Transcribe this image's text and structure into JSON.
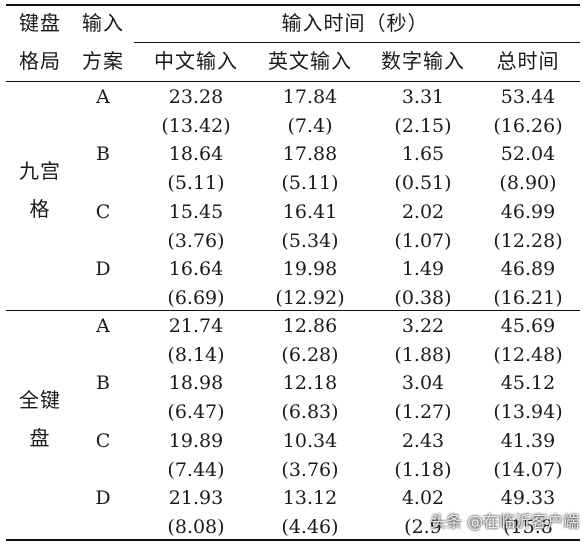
{
  "header": {
    "col1_line1": "键盘",
    "col1_line2": "格局",
    "col2_line1": "输入",
    "col2_line2": "方案",
    "group": "输入时间（秒）",
    "sub": [
      "中文输入",
      "英文输入",
      "数字输入",
      "总时间"
    ]
  },
  "groups": [
    {
      "label_line1": "九宫",
      "label_line2": "格",
      "rows": [
        {
          "scheme": "A",
          "means": [
            "23.28",
            "17.84",
            "3.31",
            "53.44"
          ],
          "sds": [
            "(13.42)",
            "(7.4)",
            "(2.15)",
            "(16.26)"
          ]
        },
        {
          "scheme": "B",
          "means": [
            "18.64",
            "17.88",
            "1.65",
            "52.04"
          ],
          "sds": [
            "(5.11)",
            "(5.11)",
            "(0.51)",
            "(8.90)"
          ]
        },
        {
          "scheme": "C",
          "means": [
            "15.45",
            "16.41",
            "2.02",
            "46.99"
          ],
          "sds": [
            "(3.76)",
            "(5.34)",
            "(1.07)",
            "(12.28)"
          ]
        },
        {
          "scheme": "D",
          "means": [
            "16.64",
            "19.98",
            "1.49",
            "46.89"
          ],
          "sds": [
            "(6.69)",
            "(12.92)",
            "(0.38)",
            "(16.21)"
          ]
        }
      ]
    },
    {
      "label_line1": "全键",
      "label_line2": "盘",
      "rows": [
        {
          "scheme": "A",
          "means": [
            "21.74",
            "12.86",
            "3.22",
            "45.69"
          ],
          "sds": [
            "(8.14)",
            "(6.28)",
            "(1.88)",
            "(12.48)"
          ]
        },
        {
          "scheme": "B",
          "means": [
            "18.98",
            "12.18",
            "3.04",
            "45.12"
          ],
          "sds": [
            "(6.47)",
            "(6.83)",
            "(1.27)",
            "(13.94)"
          ]
        },
        {
          "scheme": "C",
          "means": [
            "19.89",
            "10.34",
            "2.43",
            "41.39"
          ],
          "sds": [
            "(7.44)",
            "(3.76)",
            "(1.18)",
            "(14.07)"
          ]
        },
        {
          "scheme": "D",
          "means": [
            "21.93",
            "13.12",
            "4.02",
            "49.33"
          ],
          "sds": [
            "(8.08)",
            "(4.46)",
            "(2.9",
            "(15.8"
          ]
        }
      ]
    }
  ],
  "watermark": "头条 @在临沂客户端"
}
